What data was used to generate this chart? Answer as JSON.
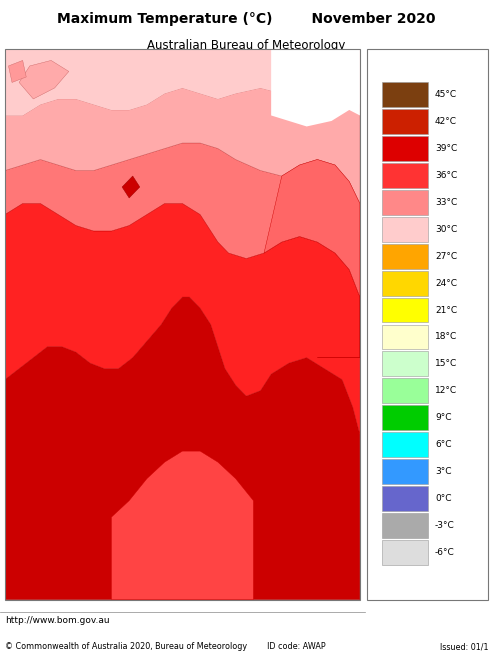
{
  "title": "Maximum Temperature (°C)        November 2020",
  "subtitle": "Australian Bureau of Meteorology",
  "footer_left": "http://www.bom.gov.au",
  "footer_center": "© Commonwealth of Australia 2020, Bureau of Meteorology        ID code: AWAP",
  "footer_right": "Issued: 01/1",
  "colorbar_labels": [
    "45°C",
    "42°C",
    "39°C",
    "36°C",
    "33°C",
    "30°C",
    "27°C",
    "24°C",
    "21°C",
    "18°C",
    "15°C",
    "12°C",
    "9°C",
    "6°C",
    "3°C",
    "0°C",
    "-3°C",
    "-6°C"
  ],
  "cb_colors": [
    "#7B3F10",
    "#CC2000",
    "#DD0000",
    "#FF3333",
    "#FF8888",
    "#FFCCCC",
    "#FFA500",
    "#FFD700",
    "#FFFF00",
    "#FFFFCC",
    "#CCFFCC",
    "#99FF99",
    "#00CC00",
    "#00FFFF",
    "#3399FF",
    "#6666CC",
    "#AAAAAA",
    "#DDDDDD",
    "#FFB3FF",
    "#FF00FF"
  ],
  "title_fontsize": 10,
  "subtitle_fontsize": 8.5
}
